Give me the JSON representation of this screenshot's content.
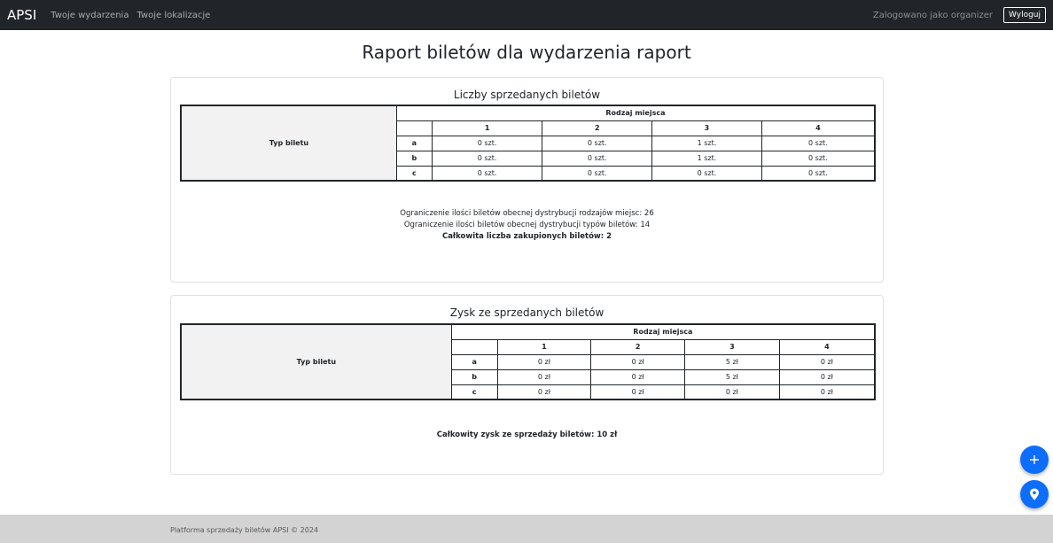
{
  "navbar": {
    "brand": "APSI",
    "links": [
      "Twoje wydarzenia",
      "Twoje lokalizacje"
    ],
    "logged_in_as": "Zalogowano jako organizer",
    "logout_label": "Wyloguj"
  },
  "page": {
    "title": "Raport biletów dla wydarzenia raport"
  },
  "tickets_card": {
    "title": "Liczby sprzedanych biletów",
    "row_header": "Typ biletu",
    "col_group_header": "Rodzaj miejsca",
    "columns": [
      "1",
      "2",
      "3",
      "4"
    ],
    "rows": [
      {
        "label": "a",
        "cells": [
          "0 szt.",
          "0 szt.",
          "1 szt.",
          "0 szt."
        ]
      },
      {
        "label": "b",
        "cells": [
          "0 szt.",
          "0 szt.",
          "1 szt.",
          "0 szt."
        ]
      },
      {
        "label": "c",
        "cells": [
          "0 szt.",
          "0 szt.",
          "0 szt.",
          "0 szt."
        ]
      }
    ],
    "limit_places": "Ograniczenie ilości biletów obecnej dystrybucji rodzajów miejsc: 26",
    "limit_types": "Ograniczenie ilości biletów obecnej dystrybucji typów biletów: 14",
    "total": "Całkowita liczba zakupionych biletów: 2"
  },
  "profit_card": {
    "title": "Zysk ze sprzedanych biletów",
    "row_header": "Typ biletu",
    "col_group_header": "Rodzaj miejsca",
    "columns": [
      "1",
      "2",
      "3",
      "4"
    ],
    "rows": [
      {
        "label": "a",
        "cells": [
          "0 zł",
          "0 zł",
          "5 zł",
          "0 zł"
        ]
      },
      {
        "label": "b",
        "cells": [
          "0 zł",
          "0 zł",
          "5 zł",
          "0 zł"
        ]
      },
      {
        "label": "c",
        "cells": [
          "0 zł",
          "0 zł",
          "0 zł",
          "0 zł"
        ]
      }
    ],
    "total": "Całkowity zysk ze sprzedaży biletów: 10 zł"
  },
  "fabs": {
    "add_icon": "plus-icon",
    "location_icon": "map-pin-icon"
  },
  "footer": {
    "text": "Platforma sprzedaży biletów APSI © 2024"
  },
  "colors": {
    "navbar": "#212529",
    "accent": "#0d6efd",
    "footer": "#d3d3d3"
  }
}
